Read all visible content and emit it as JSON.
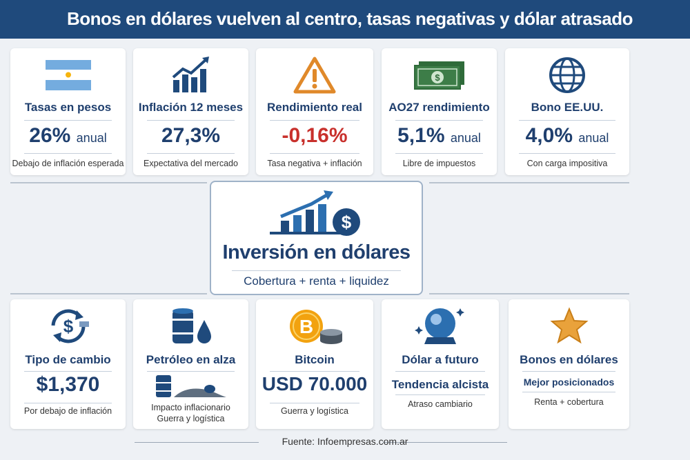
{
  "header": {
    "title": "Bonos en dólares vuelven al centro, tasas negativas y dólar atrasado"
  },
  "top_cards": [
    {
      "icon": "argentina-flag-icon",
      "title": "Tasas en pesos",
      "value": "26%",
      "unit": "anual",
      "note": "Debajo de inflación esperada"
    },
    {
      "icon": "rising-chart-icon",
      "title": "Inflación 12 meses",
      "value": "27,3%",
      "unit": "",
      "note": "Expectativa del mercado"
    },
    {
      "icon": "warning-icon",
      "title": "Rendimiento real",
      "value": "-0,16%",
      "unit": "",
      "note": "Tasa negativa + inflación"
    },
    {
      "icon": "banknotes-icon",
      "title": "AO27 rendimiento",
      "value": "5,1%",
      "unit": "anual",
      "note": "Libre de impuestos"
    },
    {
      "icon": "globe-icon",
      "title": "Bono EE.UU.",
      "value": "4,0%",
      "unit": "anual",
      "note": "Con carga impositiva"
    }
  ],
  "center": {
    "title": "Inversión en dólares",
    "subtitle": "Cobertura + renta + liquidez"
  },
  "bottom_cards": [
    {
      "icon": "currency-exchange-icon",
      "title": "Tipo de cambio",
      "value": "$1,370",
      "note": "Por debajo de inflación"
    },
    {
      "icon": "oil-barrel-icon",
      "title": "Petróleo en alza",
      "value": "",
      "note": "Impacto inflacionario",
      "note2": "Guerra y logística"
    },
    {
      "icon": "bitcoin-icon",
      "title": "Bitcoin",
      "value": "USD 70.000",
      "note": "Guerra y logística"
    },
    {
      "icon": "crystal-ball-icon",
      "title": "Dólar a futuro",
      "value": "Tendencia alcista",
      "note": "Atraso cambiario"
    },
    {
      "icon": "star-icon",
      "title": "Bonos en dólares",
      "value": "Mejor posicionados",
      "note": "Renta + cobertura"
    }
  ],
  "footer": {
    "source": "Fuente: Infoempresas.com.ar"
  },
  "colors": {
    "navy": "#1f4a7c",
    "text": "#1f3f6e",
    "negative": "#c8302c",
    "accent": "#e0892a"
  }
}
